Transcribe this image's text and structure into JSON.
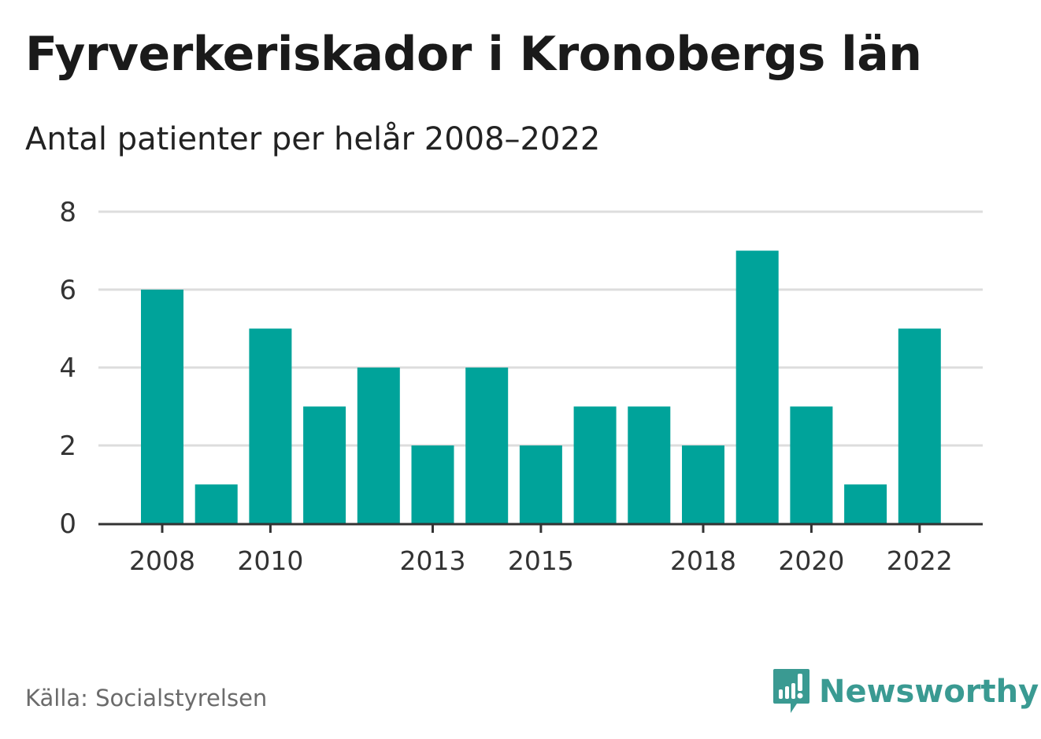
{
  "title": "Fyrverkeriskador i Kronobergs län",
  "subtitle": "Antal patienter per helår 2008–2022",
  "source": "Källa: Socialstyrelsen",
  "brand": {
    "name": "Newsworthy",
    "icon": "newsworthy-logo-icon",
    "color": "#3a9a92"
  },
  "colors": {
    "bar": "#00a39a",
    "grid": "#dddddd",
    "axis": "#333333"
  },
  "chart_data": {
    "type": "bar",
    "categories": [
      "2008",
      "2009",
      "2010",
      "2011",
      "2012",
      "2013",
      "2014",
      "2015",
      "2016",
      "2017",
      "2018",
      "2019",
      "2020",
      "2021",
      "2022"
    ],
    "values": [
      6,
      1,
      5,
      3,
      4,
      2,
      4,
      2,
      3,
      3,
      2,
      7,
      3,
      1,
      5
    ],
    "x_tick_labels": [
      "2008",
      "2010",
      "2013",
      "2015",
      "2018",
      "2020",
      "2022"
    ],
    "y_ticks": [
      "0",
      "2",
      "4",
      "6",
      "8"
    ],
    "ylim": [
      0,
      8
    ],
    "grid": true
  }
}
